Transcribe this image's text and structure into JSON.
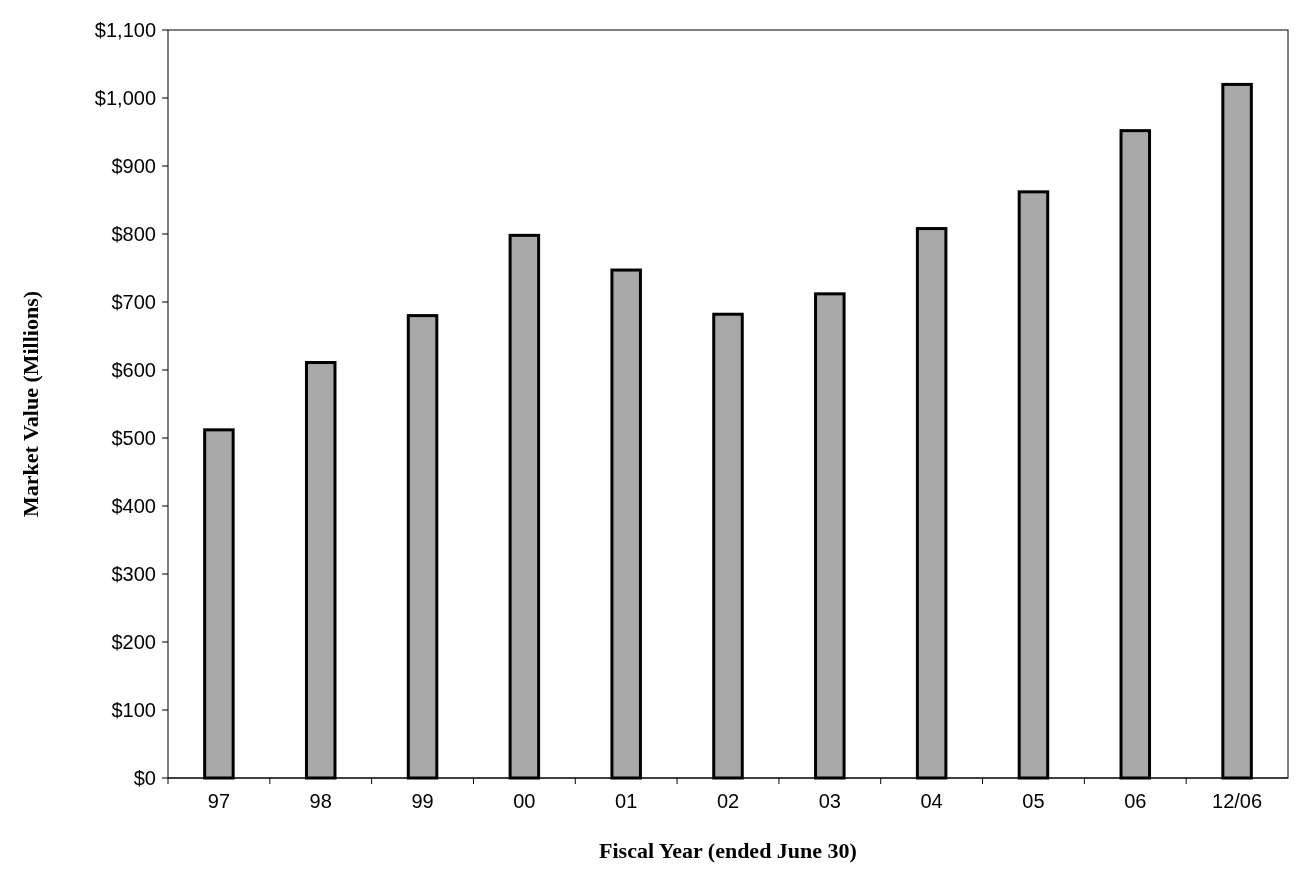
{
  "chart_data": {
    "type": "bar",
    "xlabel": "Fiscal Year (ended June 30)",
    "ylabel": "Market Value (Millions)",
    "categories": [
      "97",
      "98",
      "99",
      "00",
      "01",
      "02",
      "03",
      "04",
      "05",
      "06",
      "12/06"
    ],
    "values": [
      512,
      611,
      680,
      798,
      747,
      682,
      712,
      808,
      862,
      952,
      1020
    ],
    "color": "#a8a8a8",
    "ylim": [
      0,
      1100
    ],
    "yticks": [
      {
        "value": 0,
        "label": "$0"
      },
      {
        "value": 100,
        "label": "$100"
      },
      {
        "value": 200,
        "label": "$200"
      },
      {
        "value": 300,
        "label": "$300"
      },
      {
        "value": 400,
        "label": "$400"
      },
      {
        "value": 500,
        "label": "$500"
      },
      {
        "value": 600,
        "label": "$600"
      },
      {
        "value": 700,
        "label": "$700"
      },
      {
        "value": 800,
        "label": "$800"
      },
      {
        "value": 900,
        "label": "$900"
      },
      {
        "value": 1000,
        "label": "$1,000"
      },
      {
        "value": 1100,
        "label": "$1,100"
      }
    ],
    "grid": false
  }
}
